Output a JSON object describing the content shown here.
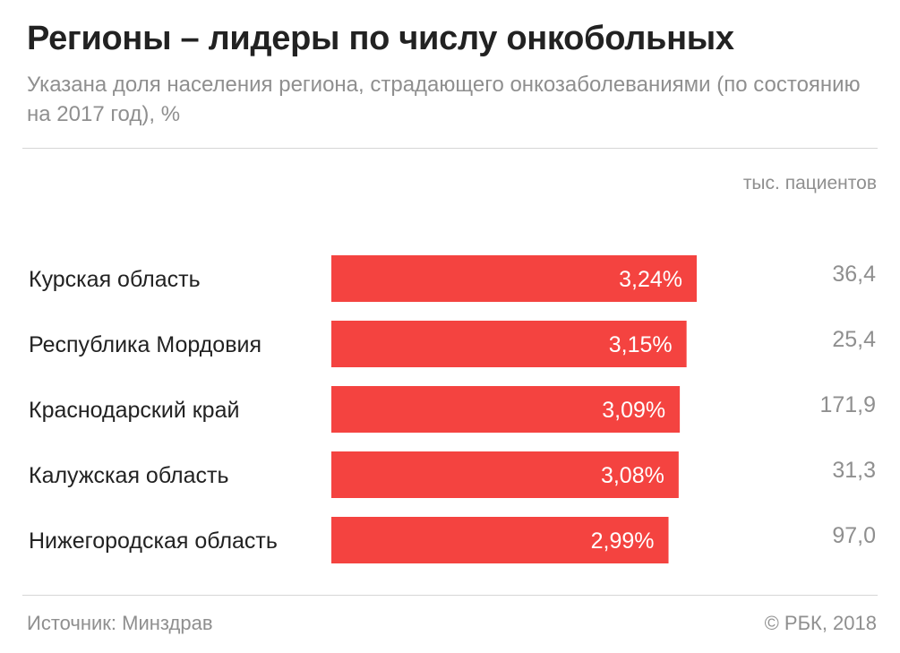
{
  "header": {
    "title": "Регионы – лидеры по числу онкобольных",
    "subtitle": "Указана доля населения региона, страдающего онкозаболеваниями (по состоянию на 2017 год), %",
    "column_header": "тыс. пациентов"
  },
  "footer": {
    "source": "Источник: Минздрав",
    "copyright": "© РБК, 2018"
  },
  "chart_data": {
    "type": "bar",
    "orientation": "horizontal",
    "categories": [
      "Курская область",
      "Республика Мордовия",
      "Краснодарский край",
      "Калужская область",
      "Нижегородская область"
    ],
    "values": [
      3.24,
      3.15,
      3.09,
      3.08,
      2.99
    ],
    "value_labels": [
      "3,24%",
      "3,15%",
      "3,09%",
      "3,08%",
      "2,99%"
    ],
    "patients": [
      "36,4",
      "25,4",
      "171,9",
      "31,3",
      "97,0"
    ],
    "bar_color": "#f44340",
    "label_color": "#ffffff",
    "grid": false
  }
}
